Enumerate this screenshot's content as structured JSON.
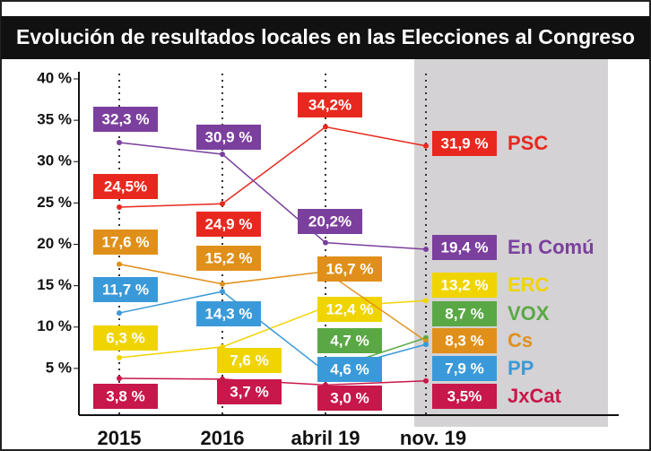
{
  "chart_data": {
    "type": "line",
    "title": "Evolución de resultados locales en las Elecciones al Congreso",
    "categories": [
      "2015",
      "2016",
      "abril 19",
      "nov. 19"
    ],
    "ylim": [
      0,
      40
    ],
    "yticks": [
      {
        "value": 5,
        "label": "5 %"
      },
      {
        "value": 10,
        "label": "10 %"
      },
      {
        "value": 15,
        "label": "15 %"
      },
      {
        "value": 20,
        "label": "20 %"
      },
      {
        "value": 25,
        "label": "25 %"
      },
      {
        "value": 30,
        "label": "30 %"
      },
      {
        "value": 35,
        "label": "35 %"
      },
      {
        "value": 40,
        "label": "40 %"
      }
    ],
    "series": [
      {
        "name": "PSC",
        "color": "#e8281e",
        "values": [
          24.5,
          24.9,
          34.2,
          31.9
        ],
        "value_labels": [
          "24,5%",
          "24,9 %",
          "34,2%",
          "31,9 %"
        ]
      },
      {
        "name": "En Comú",
        "color": "#7b3f9e",
        "values": [
          32.3,
          30.9,
          20.2,
          19.4
        ],
        "value_labels": [
          "32,3 %",
          "30,9 %",
          "20,2%",
          "19,4 %"
        ]
      },
      {
        "name": "ERC",
        "color": "#f0d400",
        "values": [
          6.3,
          7.6,
          12.4,
          13.2
        ],
        "value_labels": [
          "6,3 %",
          "7,6 %",
          "12,4 %",
          "13,2 %"
        ]
      },
      {
        "name": "VOX",
        "color": "#5aa845",
        "values": [
          null,
          null,
          4.7,
          8.7
        ],
        "value_labels": [
          null,
          null,
          "4,7 %",
          "8,7 %"
        ]
      },
      {
        "name": "Cs",
        "color": "#e0901a",
        "values": [
          17.6,
          15.2,
          16.7,
          8.3
        ],
        "value_labels": [
          "17,6 %",
          "15,2 %",
          "16,7 %",
          "8,3 %"
        ]
      },
      {
        "name": "PP",
        "color": "#3a9ad9",
        "values": [
          11.7,
          14.3,
          4.6,
          7.9
        ],
        "value_labels": [
          "11,7 %",
          "14,3 %",
          "4,6 %",
          "7,9 %"
        ]
      },
      {
        "name": "JxCat",
        "color": "#c8174a",
        "values": [
          3.8,
          3.7,
          3.0,
          3.5
        ],
        "value_labels": [
          "3,8 %",
          "3,7 %",
          "3,0 %",
          "3,5%"
        ]
      }
    ]
  }
}
